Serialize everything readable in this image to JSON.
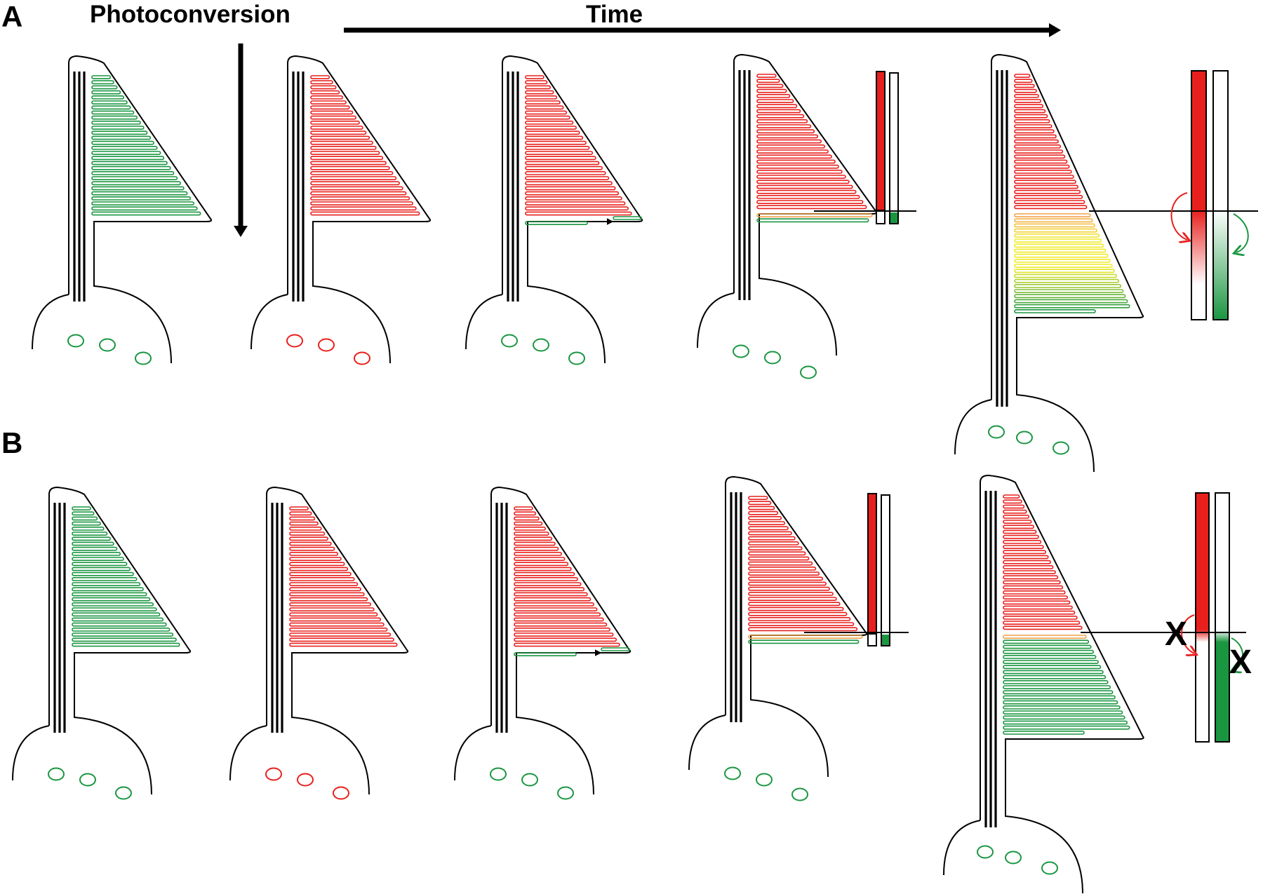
{
  "panel_labels": {
    "a": "A",
    "b": "B"
  },
  "header": {
    "photoconversion": "Photoconversion",
    "time": "Time"
  },
  "blocked_marks": {
    "red": "X",
    "green": "X"
  },
  "colors": {
    "green": "#1a9641",
    "red": "#e8201d",
    "yellow": "#f2ea2a",
    "orange": "#f3a24a",
    "outline": "#000000"
  },
  "panel_a": {
    "stages": [
      {
        "state": "before-photoconversion",
        "old_discs": "green",
        "new_discs": "none",
        "nuclei": "green"
      },
      {
        "state": "photoconverted",
        "old_discs": "red",
        "new_discs": "none",
        "nuclei": "red"
      },
      {
        "state": "early-growth",
        "old_discs": "red",
        "new_discs": "green",
        "nuclei": "green"
      },
      {
        "state": "boundary-forming",
        "old_discs": "red",
        "new_discs": "green",
        "nuclei": "green",
        "mixing": "diffusion"
      },
      {
        "state": "late",
        "old_discs": "red",
        "new_discs": "green",
        "nuclei": "green",
        "mixing": "diffusion"
      }
    ]
  },
  "panel_b": {
    "stages": [
      {
        "state": "before-photoconversion",
        "old_discs": "green",
        "new_discs": "none",
        "nuclei": "green"
      },
      {
        "state": "photoconverted",
        "old_discs": "red",
        "new_discs": "none",
        "nuclei": "red"
      },
      {
        "state": "early-growth",
        "old_discs": "red",
        "new_discs": "green",
        "nuclei": "green"
      },
      {
        "state": "boundary-forming",
        "old_discs": "red",
        "new_discs": "green",
        "nuclei": "green",
        "mixing": "none"
      },
      {
        "state": "late",
        "old_discs": "red",
        "new_discs": "green",
        "nuclei": "green",
        "mixing": "blocked"
      }
    ]
  }
}
